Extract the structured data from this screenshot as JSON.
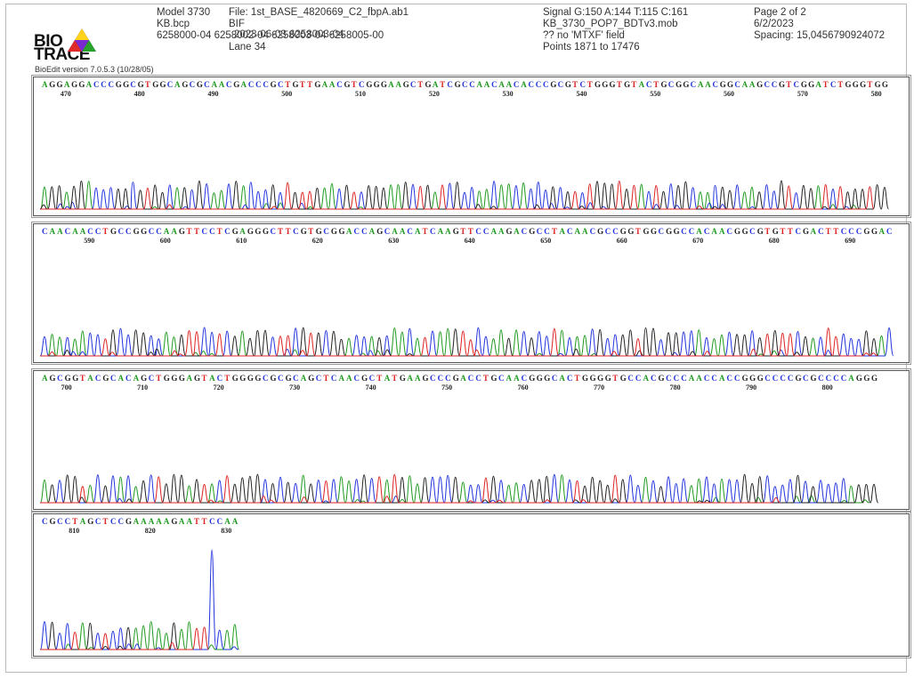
{
  "logo": {
    "line1": "BIO",
    "line2": "TRACE",
    "version": "BioEdit version 7.0.5.3 (10/28/05)"
  },
  "header": {
    "col1": [
      "Model 3730",
      "KB.bcp",
      "6258000-04 6258002-04 6258003-04 6258005-00"
    ],
    "col2": [
      "File: 1st_BASE_4820669_C2_fbpA.ab1",
      "BIF",
      "2023-06-03 6258003-04",
      "Lane 34"
    ],
    "col3": [
      "Signal G:150 A:144 T:115 C:161",
      "KB_3730_POP7_BDTv3.mob",
      "?? no 'MTXF' field",
      "Points 1871 to 17476"
    ],
    "col4": [
      "Page 2 of 2",
      "6/2/2023",
      "Spacing: 15,0456790924072"
    ]
  },
  "colors": {
    "A": "#1f9a1f",
    "C": "#2233dd",
    "G": "#222222",
    "T": "#dd2222"
  },
  "panels": [
    {
      "sequence": "AGGAGGACCCGGCGTGGCAGCGCAACGACCCGCTGTTGAACGTCGGGAAGCTGATCGCCAACAACACCCGCGTCTGGGTGTACTGCGGCAACGGCAAGCCGTCGGATCTGGGTGG",
      "ticks": [
        470,
        480,
        490,
        500,
        510,
        520,
        530,
        540,
        550,
        560,
        570,
        580
      ],
      "first": 467
    },
    {
      "sequence": "CAACAACCTGCCGGCCAAGTTCCTCGAGGGCTTCGTGCGGACCAGCAACATCAAGTTCCAAGACGCCTACAACGCCGGTGGCGGCCACAACGGCGTGTTCGACTTCCCGGAC",
      "ticks": [
        590,
        600,
        610,
        620,
        630,
        640,
        650,
        660,
        670,
        680,
        690
      ],
      "first": 584
    },
    {
      "sequence": "AGCGGTACGCACAGCTGGGAGTACTGGGGCGCGCAGCTCAACGCTATGAAGCCCGACCTGCAACGGGCACTGGGGTGCCACGCCCAACCACCGGGCCCCGCGCCCCAGGG",
      "ticks": [
        700,
        710,
        720,
        730,
        740,
        750,
        760,
        770,
        780,
        790,
        800
      ],
      "first": 697
    },
    {
      "sequence": "CGCCTAGCTCCGAAAAAGAATTCCAA",
      "ticks": [
        810,
        820,
        830
      ],
      "first": 806
    }
  ]
}
